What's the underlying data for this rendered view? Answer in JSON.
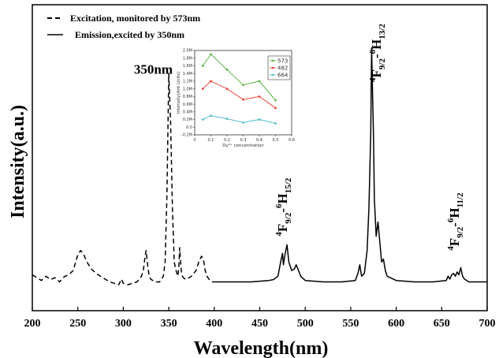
{
  "chart_data": [
    {
      "type": "line",
      "xlabel": "Wavelength(nm)",
      "ylabel": "Intensity(a.u.)",
      "xlim": [
        200,
        700
      ],
      "x_ticks": [
        "200",
        "250",
        "300",
        "350",
        "400",
        "450",
        "500",
        "550",
        "600",
        "650",
        "700"
      ],
      "y_ticks_labeled": false,
      "legend": {
        "placement": "top-left",
        "entries": [
          {
            "label": "Excitation, monitored by 573nm",
            "style": "dashed"
          },
          {
            "label": "Emission,excited by 350nm",
            "style": "solid"
          }
        ]
      },
      "annotations": [
        {
          "text": "350nm",
          "x": 333,
          "y": 0.77
        },
        {
          "prefix": "4",
          "base": "F",
          "sub": "9/2",
          "dash": "-",
          "prefix2": "6",
          "base2": "H",
          "sub2": "15/2",
          "x": 480,
          "y": 0.2,
          "rotated": true
        },
        {
          "prefix": "4",
          "base": "F",
          "sub": "9/2",
          "dash": "-",
          "prefix2": "6",
          "base2": "H",
          "sub2": "13/2",
          "x": 583,
          "y": 0.74,
          "rotated": true
        },
        {
          "prefix": "4",
          "base": "F",
          "sub": "9/2",
          "dash": "-",
          "prefix2": "6",
          "base2": "H",
          "sub2": "11/2",
          "x": 669,
          "y": 0.15,
          "rotated": true
        }
      ],
      "series": [
        {
          "name": "Excitation, monitored by 573nm",
          "style": "dashed",
          "x": [
            200,
            205,
            210,
            215,
            220,
            225,
            230,
            235,
            240,
            245,
            250,
            253,
            256,
            260,
            265,
            270,
            275,
            280,
            285,
            290,
            295,
            298,
            300,
            305,
            310,
            315,
            320,
            322,
            324,
            325,
            326,
            328,
            330,
            335,
            340,
            344,
            346,
            348,
            350,
            352,
            354,
            356,
            358,
            360,
            361,
            362,
            363,
            364,
            365,
            366,
            368,
            370,
            375,
            380,
            383,
            386,
            388,
            390,
            392,
            394,
            396,
            398,
            400
          ],
          "y": [
            0.065,
            0.055,
            0.045,
            0.06,
            0.048,
            0.055,
            0.04,
            0.058,
            0.065,
            0.08,
            0.135,
            0.15,
            0.14,
            0.11,
            0.085,
            0.07,
            0.06,
            0.05,
            0.04,
            0.035,
            0.03,
            0.05,
            0.035,
            0.03,
            0.035,
            0.04,
            0.06,
            0.08,
            0.13,
            0.15,
            0.12,
            0.07,
            0.05,
            0.04,
            0.04,
            0.06,
            0.11,
            0.35,
            0.77,
            0.6,
            0.3,
            0.11,
            0.08,
            0.06,
            0.09,
            0.16,
            0.11,
            0.07,
            0.06,
            0.055,
            0.05,
            0.05,
            0.06,
            0.08,
            0.11,
            0.13,
            0.12,
            0.08,
            0.06,
            0.05,
            0.045,
            0.04,
            0.04
          ]
        },
        {
          "name": "Emission,excited by 350nm",
          "style": "solid",
          "x": [
            400,
            420,
            440,
            460,
            465,
            470,
            473,
            475,
            476,
            478,
            480,
            482,
            485,
            488,
            490,
            492,
            495,
            500,
            520,
            540,
            555,
            558,
            560,
            562,
            565,
            568,
            570,
            572,
            573,
            574,
            575,
            576,
            578,
            580,
            582,
            584,
            586,
            588,
            590,
            600,
            620,
            640,
            655,
            657,
            659,
            661,
            663,
            665,
            667,
            669,
            671,
            673,
            675,
            680,
            700
          ],
          "y": [
            0.04,
            0.04,
            0.04,
            0.045,
            0.048,
            0.06,
            0.11,
            0.14,
            0.1,
            0.14,
            0.17,
            0.11,
            0.08,
            0.085,
            0.1,
            0.085,
            0.06,
            0.045,
            0.04,
            0.04,
            0.045,
            0.07,
            0.1,
            0.06,
            0.07,
            0.15,
            0.3,
            0.56,
            0.86,
            0.7,
            0.55,
            0.33,
            0.2,
            0.25,
            0.18,
            0.11,
            0.12,
            0.08,
            0.06,
            0.045,
            0.04,
            0.04,
            0.045,
            0.06,
            0.05,
            0.065,
            0.07,
            0.06,
            0.075,
            0.065,
            0.09,
            0.06,
            0.05,
            0.04,
            0.04
          ]
        }
      ]
    },
    {
      "type": "line",
      "placement": "inset",
      "xlabel": "Dy³⁺ concentration",
      "ylabel": "Intensity(Arb.Units)",
      "xlim": [
        0,
        0.6
      ],
      "ylim": [
        -0.2,
        2.0
      ],
      "x_ticks": [
        "0",
        "0.1",
        "0.2",
        "0.3",
        "0.4",
        "0.5",
        "0.6"
      ],
      "y_ticks": [
        "-0.2M",
        "0.0",
        "0.2M",
        "0.4M",
        "0.6M",
        "0.8M",
        "1.0M",
        "1.2M",
        "1.4M",
        "1.6M",
        "1.8M",
        "2.0M"
      ],
      "legend": {
        "placement": "top-right"
      },
      "x": [
        0.05,
        0.1,
        0.2,
        0.3,
        0.4,
        0.5
      ],
      "series": [
        {
          "name": "573",
          "color": "#4cae31",
          "values": [
            1.6,
            1.9,
            1.5,
            1.1,
            1.2,
            0.7
          ]
        },
        {
          "name": "482",
          "color": "#e8352a",
          "values": [
            1.0,
            1.2,
            1.0,
            0.72,
            0.8,
            0.5
          ]
        },
        {
          "name": "664",
          "color": "#3fb7c9",
          "values": [
            0.2,
            0.3,
            0.22,
            0.12,
            0.2,
            0.1
          ]
        }
      ]
    }
  ]
}
